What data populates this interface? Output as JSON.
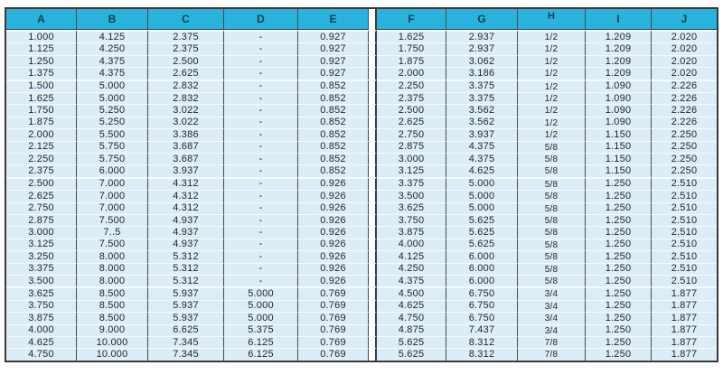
{
  "colors": {
    "page_bg": "#ffffff",
    "outer_border": "#3a3a3a",
    "grid_dark": "#4a4a4a",
    "header_bg": "#29b3dc",
    "header_text": "#173f56",
    "row_bg": "#dcedf7",
    "row_sep": "#f5fafd",
    "divider_bg": "#fbfdfe",
    "cell_text": "#262626"
  },
  "table": {
    "columns": [
      "A",
      "B",
      "C",
      "D",
      "E",
      "F",
      "G",
      "H",
      "I",
      "J"
    ],
    "fraction_column": "H",
    "rows": [
      [
        "1.000",
        "4.125",
        "2.375",
        "-",
        "0.927",
        "1.625",
        "2.937",
        "1/2",
        "1.209",
        "2.020"
      ],
      [
        "1.125",
        "4.250",
        "2.375",
        "-",
        "0.927",
        "1.750",
        "2.937",
        "1/2",
        "1.209",
        "2.020"
      ],
      [
        "1.250",
        "4.375",
        "2.500",
        "-",
        "0.927",
        "1.875",
        "3.062",
        "1/2",
        "1.209",
        "2.020"
      ],
      [
        "1.375",
        "4.375",
        "2.625",
        "-",
        "0.927",
        "2.000",
        "3.186",
        "1/2",
        "1.209",
        "2.020"
      ],
      [
        "1.500",
        "5.000",
        "2.832",
        "-",
        "0.852",
        "2.250",
        "3.375",
        "1/2",
        "1.090",
        "2.226"
      ],
      [
        "1.625",
        "5.000",
        "2.832",
        "-",
        "0.852",
        "2.375",
        "3.375",
        "1/2",
        "1.090",
        "2.226"
      ],
      [
        "1.750",
        "5.250",
        "3.022",
        "-",
        "0.852",
        "2.500",
        "3.562",
        "1/2",
        "1.090",
        "2.226"
      ],
      [
        "1.875",
        "5.250",
        "3.022",
        "-",
        "0.852",
        "2.625",
        "3.562",
        "1/2",
        "1.090",
        "2.226"
      ],
      [
        "2.000",
        "5.500",
        "3.386",
        "-",
        "0.852",
        "2.750",
        "3.937",
        "1/2",
        "1.150",
        "2.250"
      ],
      [
        "2.125",
        "5.750",
        "3.687",
        "-",
        "0.852",
        "2.875",
        "4.375",
        "5/8",
        "1.150",
        "2.250"
      ],
      [
        "2.250",
        "5.750",
        "3.687",
        "-",
        "0.852",
        "3.000",
        "4.375",
        "5/8",
        "1.150",
        "2.250"
      ],
      [
        "2.375",
        "6.000",
        "3.937",
        "-",
        "0.852",
        "3.125",
        "4.625",
        "5/8",
        "1.150",
        "2.250"
      ],
      [
        "2.500",
        "7.000",
        "4.312",
        "-",
        "0.926",
        "3.375",
        "5.000",
        "5/8",
        "1.250",
        "2.510"
      ],
      [
        "2.625",
        "7.000",
        "4.312",
        "-",
        "0.926",
        "3.500",
        "5.000",
        "5/8",
        "1.250",
        "2.510"
      ],
      [
        "2.750",
        "7.000",
        "4.312",
        "-",
        "0.926",
        "3.625",
        "5.000",
        "5/8",
        "1.250",
        "2.510"
      ],
      [
        "2.875",
        "7.500",
        "4.937",
        "-",
        "0.926",
        "3.750",
        "5.625",
        "5/8",
        "1.250",
        "2.510"
      ],
      [
        "3.000",
        "7..5",
        "4.937",
        "-",
        "0.926",
        "3.875",
        "5.625",
        "5/8",
        "1.250",
        "2.510"
      ],
      [
        "3.125",
        "7.500",
        "4.937",
        "-",
        "0.926",
        "4.000",
        "5.625",
        "5/8",
        "1.250",
        "2.510"
      ],
      [
        "3.250",
        "8.000",
        "5.312",
        "-",
        "0.926",
        "4.125",
        "6.000",
        "5/8",
        "1.250",
        "2.510"
      ],
      [
        "3.375",
        "8.000",
        "5.312",
        "-",
        "0.926",
        "4.250",
        "6.000",
        "5/8",
        "1.250",
        "2.510"
      ],
      [
        "3.500",
        "8.000",
        "5.312",
        "-",
        "0.926",
        "4.375",
        "6.000",
        "5/8",
        "1.250",
        "2.510"
      ],
      [
        "3.625",
        "8.500",
        "5.937",
        "5.000",
        "0.769",
        "4.500",
        "6.750",
        "3/4",
        "1.250",
        "1.877"
      ],
      [
        "3.750",
        "8.500",
        "5.937",
        "5.000",
        "0.769",
        "4.625",
        "6.750",
        "3/4",
        "1.250",
        "1.877"
      ],
      [
        "3.875",
        "8.500",
        "5.937",
        "5.000",
        "0.769",
        "4.750",
        "6.750",
        "3/4",
        "1.250",
        "1.877"
      ],
      [
        "4.000",
        "9.000",
        "6.625",
        "5.375",
        "0.769",
        "4.875",
        "7.437",
        "3/4",
        "1.250",
        "1.877"
      ],
      [
        "4.625",
        "10.000",
        "7.345",
        "6.125",
        "0.769",
        "5.625",
        "8.312",
        "7/8",
        "1.250",
        "1.877"
      ],
      [
        "4.750",
        "10.000",
        "7.345",
        "6.125",
        "0.769",
        "5.625",
        "8.312",
        "7/8",
        "1.250",
        "1.877"
      ]
    ]
  }
}
